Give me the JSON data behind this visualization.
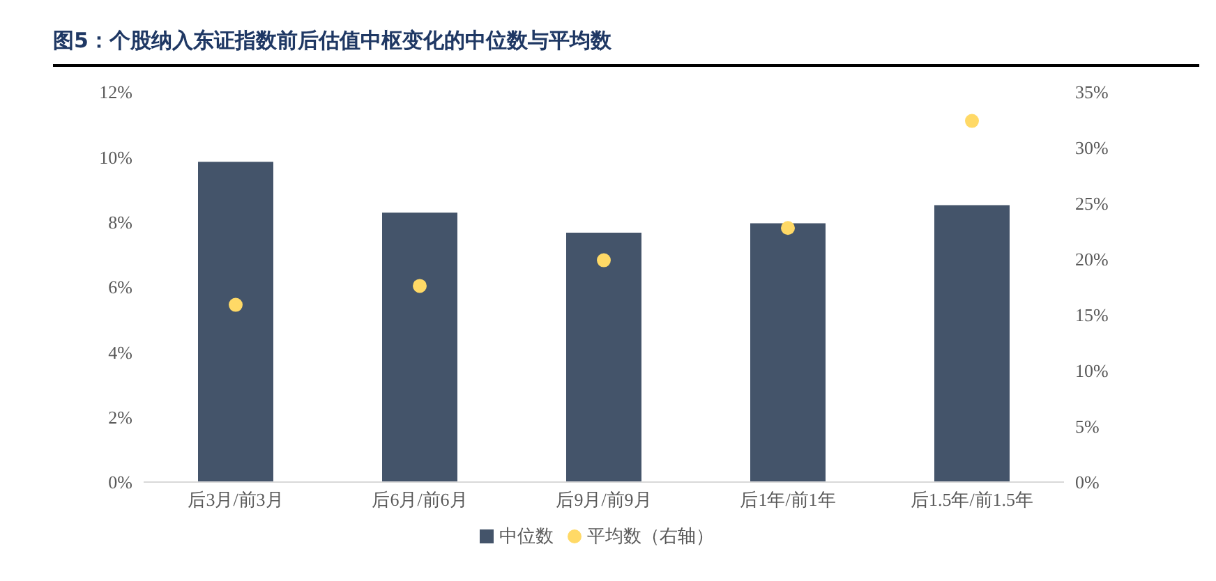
{
  "chart_data": {
    "type": "bar",
    "title": "图5：个股纳入东证指数前后估值中枢变化的中位数与平均数",
    "categories": [
      "后3月/前3月",
      "后6月/前6月",
      "后9月/前9月",
      "后1年/前1年",
      "后1.5年/前1.5年"
    ],
    "series": [
      {
        "name": "中位数",
        "color": "#44546a",
        "values": [
          9.85,
          8.29,
          7.67,
          7.96,
          8.52
        ]
      },
      {
        "name": "平均数（右轴）",
        "type": "scatter",
        "axis": "y2",
        "color": "#ffd966",
        "values": [
          15.9,
          17.6,
          19.9,
          22.8,
          32.4
        ]
      }
    ],
    "ylim": [
      0,
      12
    ],
    "yticks": [
      {
        "value": 0,
        "label": "0%"
      },
      {
        "value": 2,
        "label": "2%"
      },
      {
        "value": 4,
        "label": "4%"
      },
      {
        "value": 6,
        "label": "6%"
      },
      {
        "value": 8,
        "label": "8%"
      },
      {
        "value": 10,
        "label": "10%"
      },
      {
        "value": 12,
        "label": "12%"
      }
    ],
    "y2lim": [
      0,
      35
    ],
    "y2ticks": [
      {
        "value": 0,
        "label": "0%"
      },
      {
        "value": 5,
        "label": "5%"
      },
      {
        "value": 10,
        "label": "10%"
      },
      {
        "value": 15,
        "label": "15%"
      },
      {
        "value": 20,
        "label": "20%"
      },
      {
        "value": 25,
        "label": "25%"
      },
      {
        "value": 30,
        "label": "30%"
      },
      {
        "value": 35,
        "label": "35%"
      }
    ],
    "grid": false,
    "legend": "bottom",
    "marker": "circle"
  }
}
